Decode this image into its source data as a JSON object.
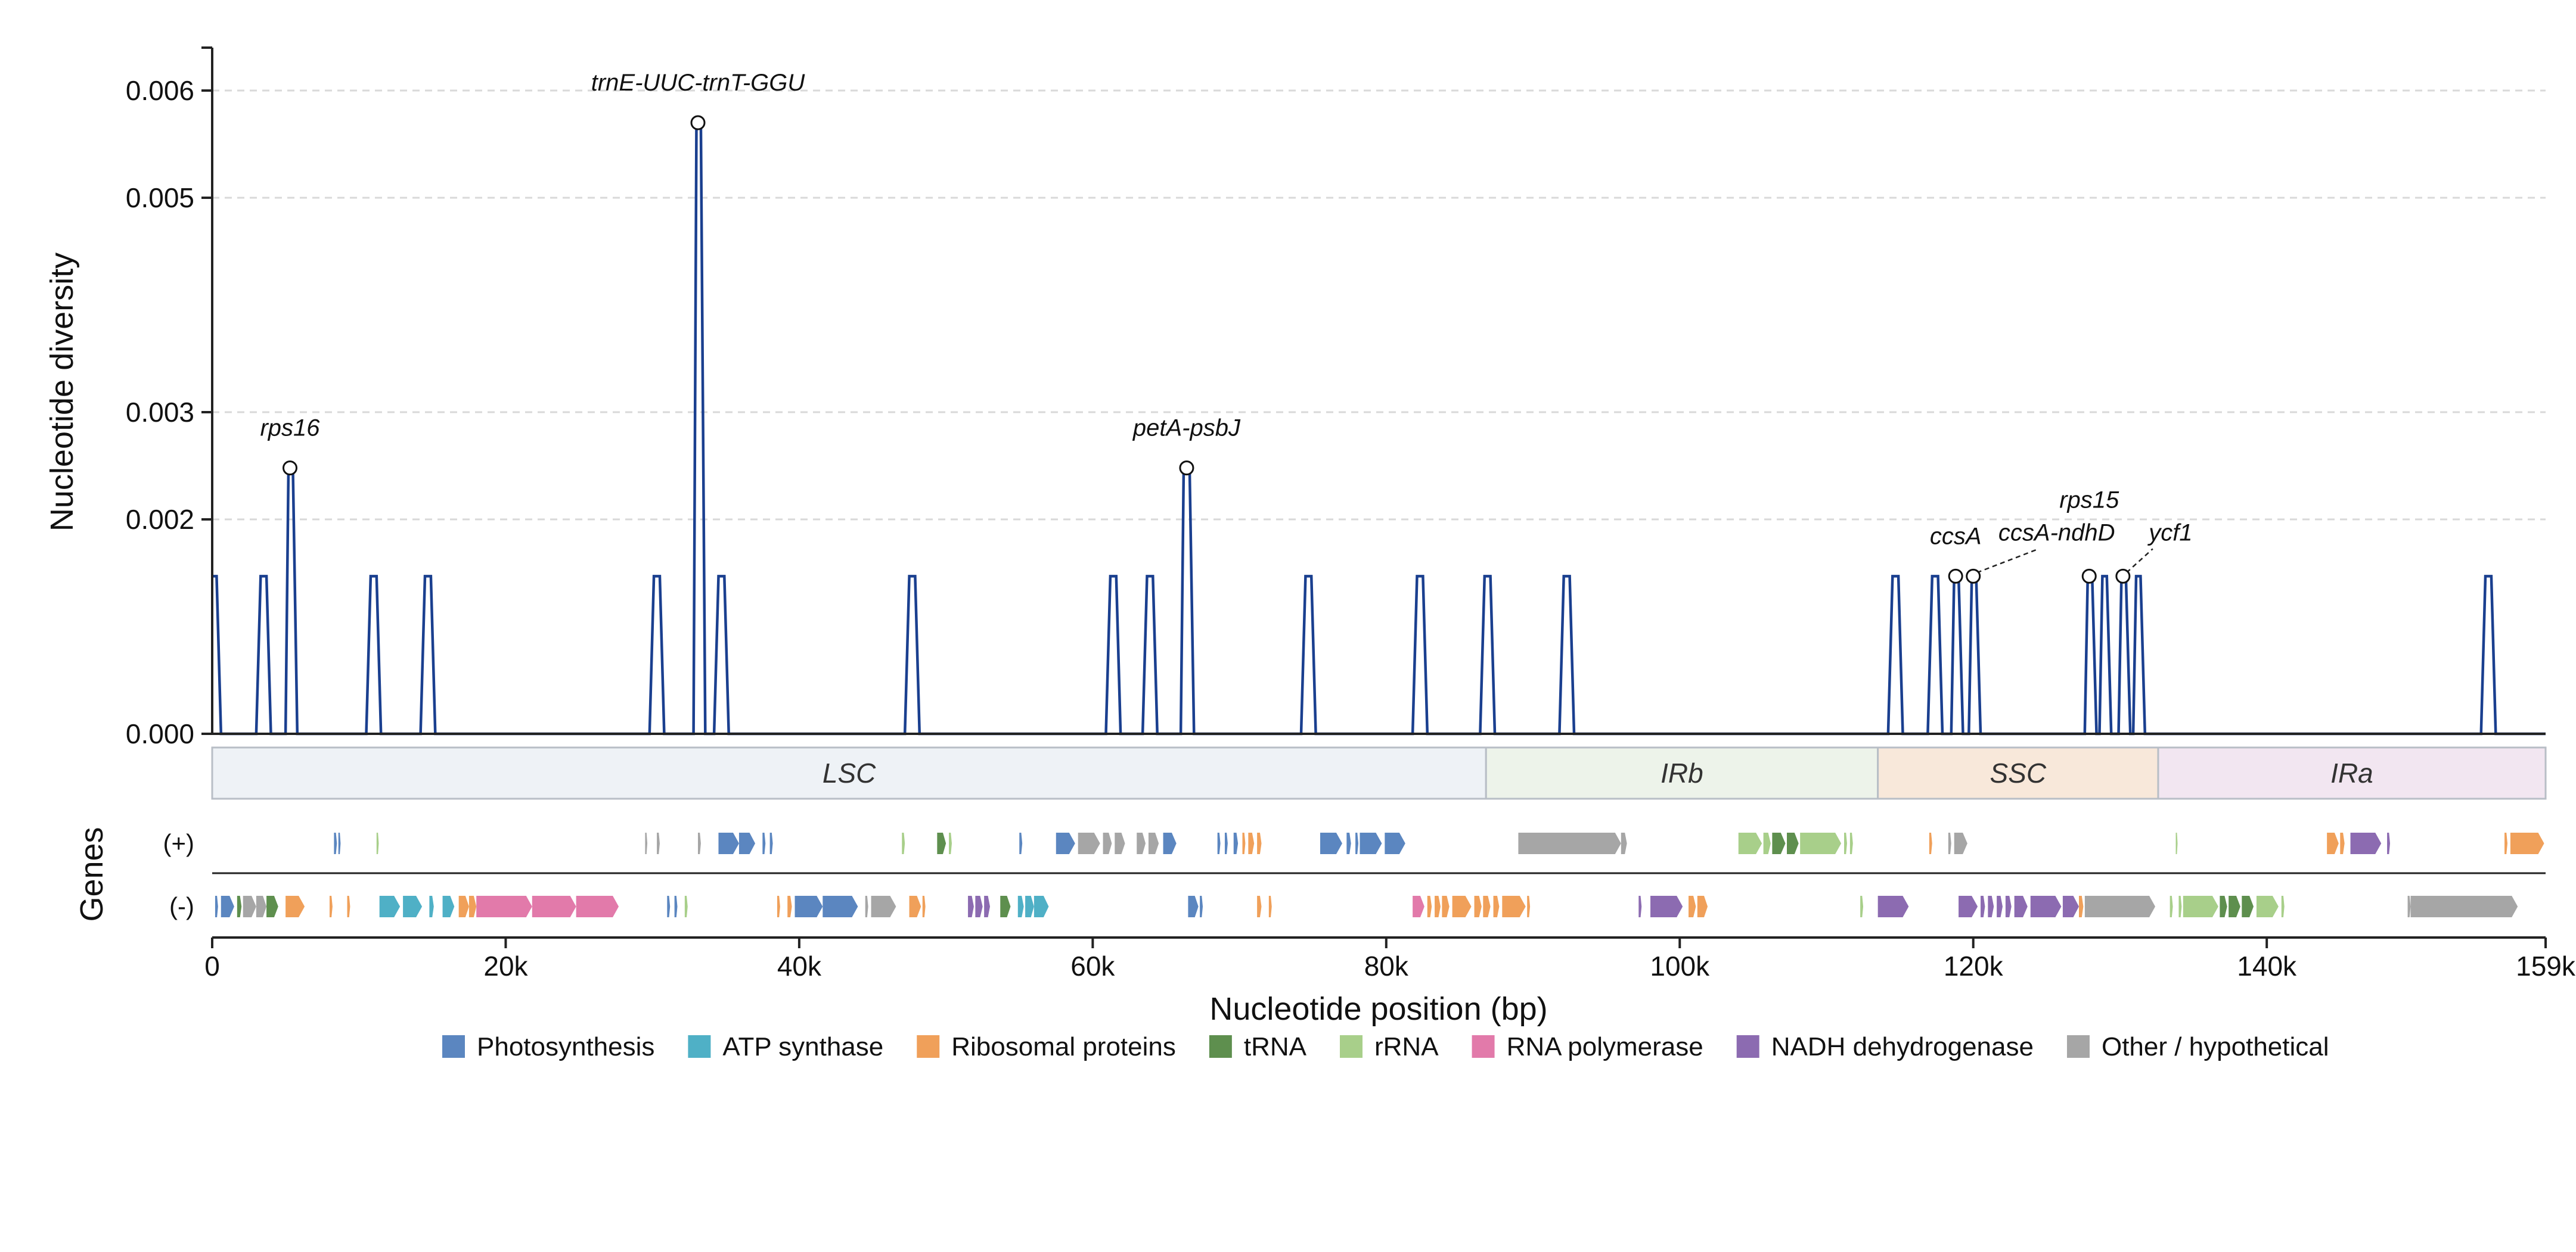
{
  "chart_data": {
    "type": "line",
    "ylabel": "Nucleotide diversity",
    "xlabel": "Nucleotide position (bp)",
    "x_ticks": [
      {
        "value": 0,
        "label": "0"
      },
      {
        "value": 20000,
        "label": "20k"
      },
      {
        "value": 40000,
        "label": "40k"
      },
      {
        "value": 60000,
        "label": "60k"
      },
      {
        "value": 80000,
        "label": "80k"
      },
      {
        "value": 100000,
        "label": "100k"
      },
      {
        "value": 120000,
        "label": "120k"
      },
      {
        "value": 140000,
        "label": "140k"
      },
      {
        "value": 159000,
        "label": "159k"
      }
    ],
    "y_ticks": [
      {
        "value": 0,
        "label": "0.000"
      },
      {
        "value": 0.002,
        "label": "0.002"
      },
      {
        "value": 0.003,
        "label": "0.003"
      },
      {
        "value": 0.005,
        "label": "0.005"
      },
      {
        "value": 0.006,
        "label": "0.006"
      }
    ],
    "xlim": [
      0,
      159000
    ],
    "ylim": [
      0,
      0.0064
    ],
    "grid": "horizontal dashed",
    "line_color": "#1a3f8f",
    "series": [
      {
        "points": [
          [
            0,
            0.00147
          ],
          [
            300,
            0.00147
          ],
          [
            600,
            0
          ],
          [
            3000,
            0
          ],
          [
            3300,
            0.00147
          ],
          [
            3700,
            0.00147
          ],
          [
            4000,
            0
          ],
          [
            5000,
            0
          ],
          [
            5200,
            0.00248
          ],
          [
            5500,
            0.00248
          ],
          [
            5800,
            0
          ],
          [
            10500,
            0
          ],
          [
            10800,
            0.00147
          ],
          [
            11200,
            0.00147
          ],
          [
            11500,
            0
          ],
          [
            14200,
            0
          ],
          [
            14500,
            0.00147
          ],
          [
            14900,
            0.00147
          ],
          [
            15200,
            0
          ],
          [
            29800,
            0
          ],
          [
            30100,
            0.00147
          ],
          [
            30500,
            0.00147
          ],
          [
            30800,
            0
          ],
          [
            32800,
            0
          ],
          [
            33000,
            0.0057
          ],
          [
            33300,
            0.0057
          ],
          [
            33600,
            0
          ],
          [
            34200,
            0
          ],
          [
            34500,
            0.00147
          ],
          [
            34900,
            0.00147
          ],
          [
            35200,
            0
          ],
          [
            47200,
            0
          ],
          [
            47500,
            0.00147
          ],
          [
            47900,
            0.00147
          ],
          [
            48200,
            0
          ],
          [
            60900,
            0
          ],
          [
            61200,
            0.00147
          ],
          [
            61600,
            0.00147
          ],
          [
            61900,
            0
          ],
          [
            63400,
            0
          ],
          [
            63700,
            0.00147
          ],
          [
            64100,
            0.00147
          ],
          [
            64400,
            0
          ],
          [
            66000,
            0
          ],
          [
            66200,
            0.00248
          ],
          [
            66600,
            0.00248
          ],
          [
            66900,
            0
          ],
          [
            74200,
            0
          ],
          [
            74500,
            0.00147
          ],
          [
            74900,
            0.00147
          ],
          [
            75200,
            0
          ],
          [
            81800,
            0
          ],
          [
            82100,
            0.00147
          ],
          [
            82500,
            0.00147
          ],
          [
            82800,
            0
          ],
          [
            86400,
            0
          ],
          [
            86700,
            0.00147
          ],
          [
            87100,
            0.00147
          ],
          [
            87400,
            0
          ],
          [
            91800,
            0
          ],
          [
            92100,
            0.00147
          ],
          [
            92500,
            0.00147
          ],
          [
            92800,
            0
          ],
          [
            114200,
            0
          ],
          [
            114500,
            0.00147
          ],
          [
            114900,
            0.00147
          ],
          [
            115200,
            0
          ],
          [
            116900,
            0
          ],
          [
            117200,
            0.00147
          ],
          [
            117600,
            0.00147
          ],
          [
            117900,
            0
          ],
          [
            118500,
            0
          ],
          [
            118700,
            0.00147
          ],
          [
            119000,
            0.00147
          ],
          [
            119300,
            0
          ],
          [
            119700,
            0
          ],
          [
            119900,
            0.00147
          ],
          [
            120200,
            0.00147
          ],
          [
            120500,
            0
          ],
          [
            127600,
            0
          ],
          [
            127800,
            0.00147
          ],
          [
            128100,
            0.00147
          ],
          [
            128400,
            0
          ],
          [
            128600,
            0
          ],
          [
            128800,
            0.00147
          ],
          [
            129100,
            0.00147
          ],
          [
            129400,
            0
          ],
          [
            129900,
            0
          ],
          [
            130100,
            0.00147
          ],
          [
            130400,
            0.00147
          ],
          [
            130700,
            0
          ],
          [
            130900,
            0
          ],
          [
            131100,
            0.00147
          ],
          [
            131400,
            0.00147
          ],
          [
            131700,
            0
          ],
          [
            154600,
            0
          ],
          [
            154900,
            0.00147
          ],
          [
            155300,
            0.00147
          ],
          [
            155600,
            0
          ],
          [
            159000,
            0
          ]
        ]
      }
    ],
    "annotations": [
      {
        "text": "rps16",
        "x": 5300,
        "y": 0.00248,
        "dx": 0,
        "dy": -54
      },
      {
        "text": "trnE-UUC-trnT-GGU",
        "x": 33100,
        "y": 0.0057,
        "dx": 0,
        "dy": -54
      },
      {
        "text": "petA-psbJ",
        "x": 66400,
        "y": 0.00248,
        "dx": 0,
        "dy": -54
      },
      {
        "text": "ccsA",
        "x": 118800,
        "y": 0.00147,
        "dx": 0,
        "dy": -54
      },
      {
        "text": "ccsA-ndhD",
        "x": 120000,
        "y": 0.00147,
        "dx": 140,
        "dy": -60,
        "leader": true
      },
      {
        "text": "rps15",
        "x": 127900,
        "y": 0.00147,
        "dx": 0,
        "dy": -115
      },
      {
        "text": "ycf1",
        "x": 130200,
        "y": 0.00147,
        "dx": 80,
        "dy": -60,
        "leader": true
      }
    ],
    "regions": [
      {
        "name": "LSC",
        "start": 0,
        "end": 86800,
        "color": "#eef2f6"
      },
      {
        "name": "IRb",
        "start": 86800,
        "end": 113500,
        "color": "#edf3ea"
      },
      {
        "name": "SSC",
        "start": 113500,
        "end": 132600,
        "color": "#f8e8da"
      },
      {
        "name": "IRa",
        "start": 132600,
        "end": 159000,
        "color": "#f2e6f1"
      }
    ],
    "genes_axis_label": "Genes",
    "strand_labels": {
      "plus": "(+)",
      "minus": "(-)"
    },
    "gene_categories": [
      {
        "name": "Photosynthesis",
        "color": "#5b86c0"
      },
      {
        "name": "ATP synthase",
        "color": "#4fb0c6"
      },
      {
        "name": "Ribosomal proteins",
        "color": "#f0a05a"
      },
      {
        "name": "tRNA",
        "color": "#5e8f4e"
      },
      {
        "name": "rRNA",
        "color": "#a8cf8a"
      },
      {
        "name": "RNA polymerase",
        "color": "#e27aaa"
      },
      {
        "name": "NADH dehydrogenase",
        "color": "#8c6bb1"
      },
      {
        "name": "Other / hypothetical",
        "color": "#a6a6a6"
      }
    ],
    "genes_plus": [
      [
        8300,
        8500,
        0
      ],
      [
        8600,
        8750,
        0
      ],
      [
        11200,
        11350,
        4
      ],
      [
        29500,
        29650,
        7
      ],
      [
        30300,
        30500,
        7
      ],
      [
        33100,
        33300,
        7
      ],
      [
        34500,
        35900,
        0
      ],
      [
        35900,
        37000,
        0
      ],
      [
        37500,
        37700,
        0
      ],
      [
        38000,
        38200,
        0
      ],
      [
        47000,
        47200,
        4
      ],
      [
        49400,
        50000,
        3
      ],
      [
        50200,
        50400,
        4
      ],
      [
        55000,
        55200,
        0
      ],
      [
        57500,
        58800,
        0
      ],
      [
        59000,
        60500,
        7
      ],
      [
        60700,
        61300,
        7
      ],
      [
        61500,
        62200,
        7
      ],
      [
        63000,
        63600,
        7
      ],
      [
        63800,
        64500,
        7
      ],
      [
        64800,
        65700,
        0
      ],
      [
        68500,
        68700,
        0
      ],
      [
        69000,
        69200,
        0
      ],
      [
        69600,
        69900,
        0
      ],
      [
        70200,
        70400,
        2
      ],
      [
        70600,
        71000,
        2
      ],
      [
        71200,
        71500,
        2
      ],
      [
        75500,
        77000,
        0
      ],
      [
        77300,
        77600,
        0
      ],
      [
        77900,
        78100,
        0
      ],
      [
        78200,
        79700,
        0
      ],
      [
        79900,
        81300,
        0
      ],
      [
        89000,
        96000,
        7
      ],
      [
        96000,
        96400,
        7
      ],
      [
        104000,
        105600,
        4
      ],
      [
        105700,
        106200,
        4
      ],
      [
        106300,
        107200,
        3
      ],
      [
        107300,
        108100,
        3
      ],
      [
        108200,
        111000,
        4
      ],
      [
        111200,
        111400,
        4
      ],
      [
        111600,
        111800,
        4
      ],
      [
        117000,
        117200,
        2
      ],
      [
        118300,
        118500,
        7
      ],
      [
        118700,
        119600,
        7
      ],
      [
        133800,
        133900,
        4
      ],
      [
        144100,
        144900,
        2
      ],
      [
        145000,
        145300,
        2
      ],
      [
        145700,
        147800,
        6
      ],
      [
        148200,
        148400,
        6
      ],
      [
        156200,
        156400,
        2
      ],
      [
        156600,
        158900,
        2
      ]
    ],
    "genes_minus": [
      [
        200,
        400,
        0
      ],
      [
        600,
        1500,
        0
      ],
      [
        1700,
        2000,
        3
      ],
      [
        2100,
        3000,
        7
      ],
      [
        3000,
        3700,
        7
      ],
      [
        3700,
        4500,
        3
      ],
      [
        5000,
        6300,
        2
      ],
      [
        8000,
        8200,
        2
      ],
      [
        9200,
        9400,
        2
      ],
      [
        11400,
        12800,
        1
      ],
      [
        13000,
        14300,
        1
      ],
      [
        14800,
        15100,
        1
      ],
      [
        15700,
        16500,
        1
      ],
      [
        16800,
        17500,
        2
      ],
      [
        17500,
        18000,
        2
      ],
      [
        18000,
        21800,
        5
      ],
      [
        21800,
        24800,
        5
      ],
      [
        24800,
        27700,
        5
      ],
      [
        31000,
        31200,
        0
      ],
      [
        31500,
        31700,
        0
      ],
      [
        32200,
        32400,
        4
      ],
      [
        38500,
        38700,
        2
      ],
      [
        39200,
        39500,
        2
      ],
      [
        39700,
        41600,
        0
      ],
      [
        41600,
        44000,
        0
      ],
      [
        44500,
        44700,
        7
      ],
      [
        44900,
        46600,
        7
      ],
      [
        47500,
        48300,
        2
      ],
      [
        48400,
        48600,
        2
      ],
      [
        51500,
        51900,
        6
      ],
      [
        52000,
        52500,
        6
      ],
      [
        52600,
        53000,
        6
      ],
      [
        53700,
        54400,
        3
      ],
      [
        54900,
        55300,
        1
      ],
      [
        55400,
        56000,
        1
      ],
      [
        56000,
        57000,
        1
      ],
      [
        66500,
        67200,
        0
      ],
      [
        67300,
        67500,
        0
      ],
      [
        71200,
        71500,
        2
      ],
      [
        72000,
        72200,
        2
      ],
      [
        81800,
        82600,
        5
      ],
      [
        82800,
        83100,
        2
      ],
      [
        83300,
        83700,
        2
      ],
      [
        83800,
        84300,
        2
      ],
      [
        84500,
        85800,
        2
      ],
      [
        86000,
        86500,
        2
      ],
      [
        86600,
        87100,
        2
      ],
      [
        87300,
        87700,
        2
      ],
      [
        87900,
        89500,
        2
      ],
      [
        89600,
        89800,
        2
      ],
      [
        97200,
        97400,
        6
      ],
      [
        98000,
        100200,
        6
      ],
      [
        100600,
        101100,
        2
      ],
      [
        101200,
        101900,
        2
      ],
      [
        112300,
        112500,
        4
      ],
      [
        113500,
        115600,
        6
      ],
      [
        119000,
        120300,
        6
      ],
      [
        120500,
        120800,
        6
      ],
      [
        121000,
        121400,
        6
      ],
      [
        121600,
        122000,
        6
      ],
      [
        122200,
        122600,
        6
      ],
      [
        122800,
        123700,
        6
      ],
      [
        123900,
        126000,
        6
      ],
      [
        126100,
        127200,
        6
      ],
      [
        127200,
        127500,
        2
      ],
      [
        127600,
        132400,
        7
      ],
      [
        133400,
        133600,
        4
      ],
      [
        134000,
        134200,
        4
      ],
      [
        134300,
        136700,
        4
      ],
      [
        136800,
        137300,
        3
      ],
      [
        137400,
        138200,
        3
      ],
      [
        138300,
        139100,
        3
      ],
      [
        139300,
        140800,
        4
      ],
      [
        141000,
        141200,
        4
      ],
      [
        149600,
        149800,
        7
      ],
      [
        149800,
        157100,
        7
      ]
    ]
  }
}
